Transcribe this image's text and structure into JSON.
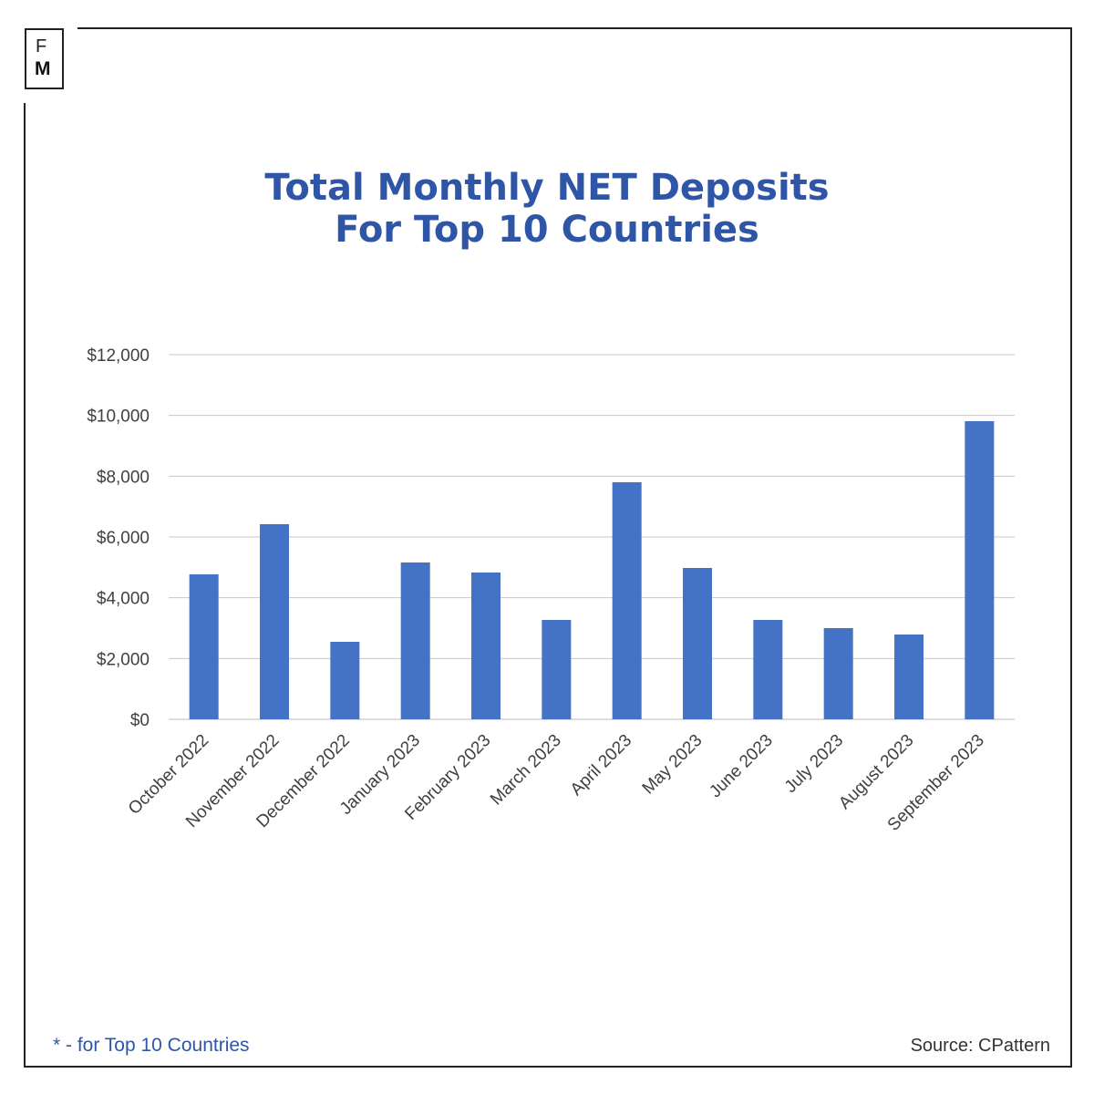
{
  "logo": {
    "letters": "FM"
  },
  "chart_data": {
    "type": "bar",
    "title": "Total Monthly NET Deposits For Top 10 Countries",
    "title_lines": [
      "Total Monthly NET Deposits",
      "For Top 10 Countries"
    ],
    "categories": [
      "October 2022",
      "November 2022",
      "December 2022",
      "January 2023",
      "February 2023",
      "March 2023",
      "April 2023",
      "May 2023",
      "June 2023",
      "July 2023",
      "August 2023",
      "September 2023"
    ],
    "values": [
      4770,
      6420,
      2550,
      5160,
      4830,
      3270,
      7800,
      4980,
      3270,
      3000,
      2790,
      9810
    ],
    "ylim": [
      0,
      12000
    ],
    "yticks": [
      "$0",
      "$2,000",
      "$4,000",
      "$6,000",
      "$8,000",
      "$10,000",
      "$12,000"
    ],
    "grid": true,
    "bar_color": "#4472c4",
    "xlabel": "",
    "ylabel": ""
  },
  "footer": {
    "note": "* - for Top 10 Countries",
    "source": "Source: CPattern"
  }
}
